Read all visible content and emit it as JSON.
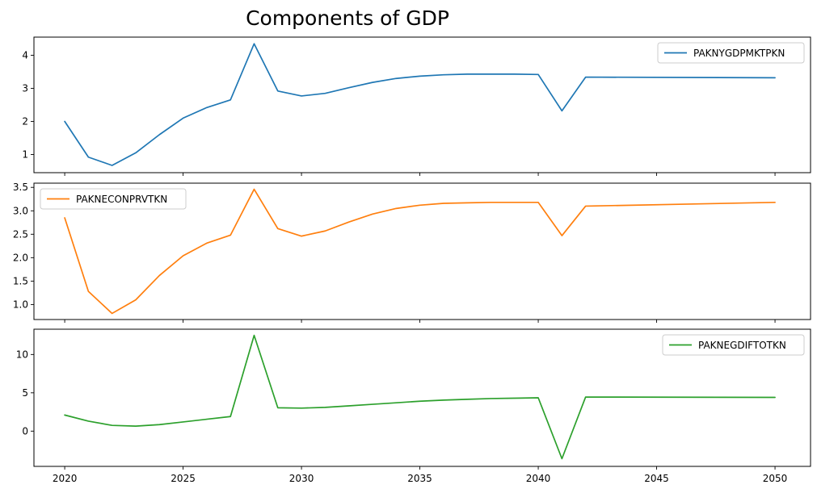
{
  "chart_data": {
    "type": "line",
    "title": "Components of GDP",
    "x_ticks": [
      2020,
      2025,
      2030,
      2035,
      2040,
      2045,
      2050
    ],
    "xlim": [
      2018.7,
      2051.5
    ],
    "panels": [
      {
        "series": [
          {
            "name": "PAKNYGDPMKTPKN",
            "color": "#1f77b4",
            "x": [
              2020,
              2021,
              2022,
              2023,
              2024,
              2025,
              2026,
              2027,
              2028,
              2029,
              2030,
              2031,
              2032,
              2033,
              2034,
              2035,
              2036,
              2037,
              2038,
              2039,
              2040,
              2041,
              2042,
              2050
            ],
            "y": [
              2.0,
              0.92,
              0.67,
              1.05,
              1.6,
              2.1,
              2.42,
              2.65,
              4.35,
              2.92,
              2.77,
              2.85,
              3.02,
              3.18,
              3.3,
              3.37,
              3.41,
              3.43,
              3.43,
              3.43,
              3.42,
              2.32,
              3.34,
              3.32
            ]
          }
        ],
        "y_ticks": [
          1,
          2,
          3,
          4
        ],
        "y_tick_labels": [
          "1",
          "2",
          "3",
          "4"
        ],
        "ylim": [
          0.45,
          4.55
        ],
        "legend": "top-right"
      },
      {
        "series": [
          {
            "name": "PAKNECONPRVTKN",
            "color": "#ff7f0e",
            "x": [
              2020,
              2021,
              2022,
              2023,
              2024,
              2025,
              2026,
              2027,
              2028,
              2029,
              2030,
              2031,
              2032,
              2033,
              2034,
              2035,
              2036,
              2037,
              2038,
              2039,
              2040,
              2041,
              2042,
              2050
            ],
            "y": [
              2.85,
              1.28,
              0.81,
              1.1,
              1.62,
              2.04,
              2.31,
              2.48,
              3.46,
              2.62,
              2.46,
              2.57,
              2.76,
              2.93,
              3.05,
              3.12,
              3.16,
              3.17,
              3.18,
              3.18,
              3.18,
              2.47,
              3.1,
              3.18
            ]
          }
        ],
        "y_ticks": [
          1.0,
          1.5,
          2.0,
          2.5,
          3.0,
          3.5
        ],
        "y_tick_labels": [
          "1.0",
          "1.5",
          "2.0",
          "2.5",
          "3.0",
          "3.5"
        ],
        "ylim": [
          0.68,
          3.59
        ],
        "legend": "top-left"
      },
      {
        "series": [
          {
            "name": "PAKNEGDIFTOTKN",
            "color": "#2ca02c",
            "x": [
              2020,
              2021,
              2022,
              2023,
              2024,
              2025,
              2026,
              2027,
              2028,
              2029,
              2030,
              2031,
              2032,
              2033,
              2034,
              2035,
              2036,
              2037,
              2038,
              2039,
              2040,
              2041,
              2042,
              2050
            ],
            "y": [
              2.1,
              1.3,
              0.75,
              0.65,
              0.85,
              1.2,
              1.55,
              1.9,
              12.5,
              3.05,
              3.0,
              3.1,
              3.3,
              3.5,
              3.7,
              3.9,
              4.05,
              4.15,
              4.25,
              4.3,
              4.35,
              -3.6,
              4.45,
              4.4
            ]
          }
        ],
        "y_ticks": [
          0,
          5,
          10
        ],
        "y_tick_labels": [
          "0",
          "5",
          "10"
        ],
        "ylim": [
          -4.6,
          13.3
        ],
        "legend": "top-right"
      }
    ],
    "grid": false
  }
}
